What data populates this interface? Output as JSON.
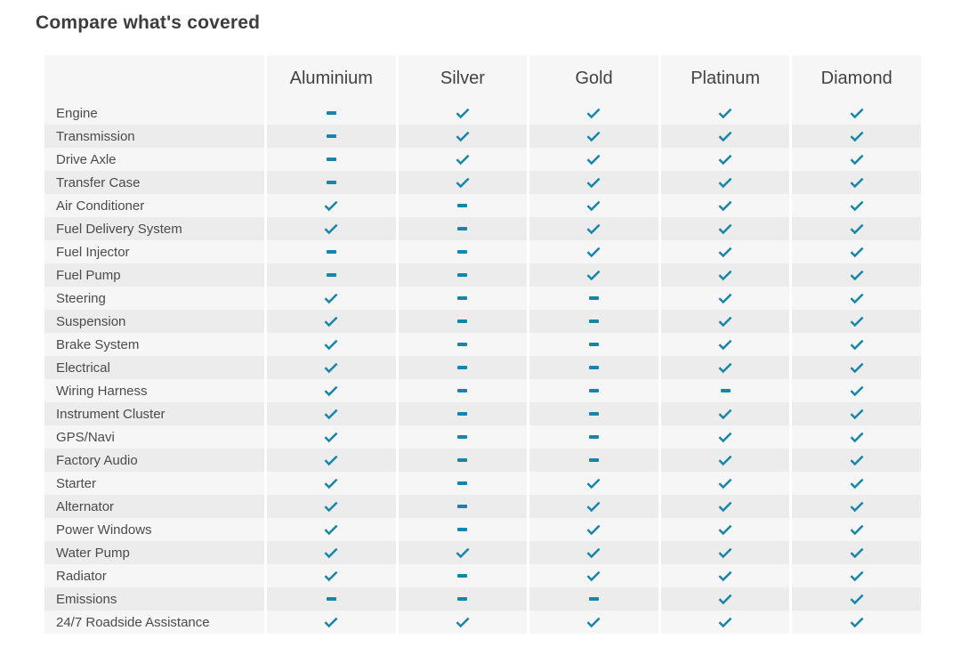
{
  "title": "Compare what's covered",
  "colors": {
    "accent": "#1585a9",
    "row_light": "#f6f6f6",
    "row_dark": "#ececec",
    "header_bg": "#f6f6f6",
    "title_text": "#3d3d3d",
    "header_text": "#424242",
    "label_text": "#4b4b4b"
  },
  "table": {
    "plans": [
      "Aluminium",
      "Silver",
      "Gold",
      "Platinum",
      "Diamond"
    ],
    "legend": {
      "check": "covered",
      "dash": "not covered"
    },
    "rows": [
      {
        "label": "Engine",
        "cells": [
          "dash",
          "check",
          "check",
          "check",
          "check"
        ]
      },
      {
        "label": "Transmission",
        "cells": [
          "dash",
          "check",
          "check",
          "check",
          "check"
        ]
      },
      {
        "label": "Drive Axle",
        "cells": [
          "dash",
          "check",
          "check",
          "check",
          "check"
        ]
      },
      {
        "label": "Transfer Case",
        "cells": [
          "dash",
          "check",
          "check",
          "check",
          "check"
        ]
      },
      {
        "label": "Air Conditioner",
        "cells": [
          "check",
          "dash",
          "check",
          "check",
          "check"
        ]
      },
      {
        "label": "Fuel Delivery System",
        "cells": [
          "check",
          "dash",
          "check",
          "check",
          "check"
        ]
      },
      {
        "label": "Fuel Injector",
        "cells": [
          "dash",
          "dash",
          "check",
          "check",
          "check"
        ]
      },
      {
        "label": "Fuel Pump",
        "cells": [
          "dash",
          "dash",
          "check",
          "check",
          "check"
        ]
      },
      {
        "label": "Steering",
        "cells": [
          "check",
          "dash",
          "dash",
          "check",
          "check"
        ]
      },
      {
        "label": "Suspension",
        "cells": [
          "check",
          "dash",
          "dash",
          "check",
          "check"
        ]
      },
      {
        "label": "Brake System",
        "cells": [
          "check",
          "dash",
          "dash",
          "check",
          "check"
        ]
      },
      {
        "label": "Electrical",
        "cells": [
          "check",
          "dash",
          "dash",
          "check",
          "check"
        ]
      },
      {
        "label": "Wiring Harness",
        "cells": [
          "check",
          "dash",
          "dash",
          "dash",
          "check"
        ]
      },
      {
        "label": "Instrument Cluster",
        "cells": [
          "check",
          "dash",
          "dash",
          "check",
          "check"
        ]
      },
      {
        "label": "GPS/Navi",
        "cells": [
          "check",
          "dash",
          "dash",
          "check",
          "check"
        ]
      },
      {
        "label": "Factory Audio",
        "cells": [
          "check",
          "dash",
          "dash",
          "check",
          "check"
        ]
      },
      {
        "label": "Starter",
        "cells": [
          "check",
          "dash",
          "check",
          "check",
          "check"
        ]
      },
      {
        "label": "Alternator",
        "cells": [
          "check",
          "dash",
          "check",
          "check",
          "check"
        ]
      },
      {
        "label": "Power Windows",
        "cells": [
          "check",
          "dash",
          "check",
          "check",
          "check"
        ]
      },
      {
        "label": "Water Pump",
        "cells": [
          "check",
          "check",
          "check",
          "check",
          "check"
        ]
      },
      {
        "label": "Radiator",
        "cells": [
          "check",
          "dash",
          "check",
          "check",
          "check"
        ]
      },
      {
        "label": "Emissions",
        "cells": [
          "dash",
          "dash",
          "dash",
          "check",
          "check"
        ]
      },
      {
        "label": "24/7 Roadside Assistance",
        "cells": [
          "check",
          "check",
          "check",
          "check",
          "check"
        ]
      }
    ]
  }
}
